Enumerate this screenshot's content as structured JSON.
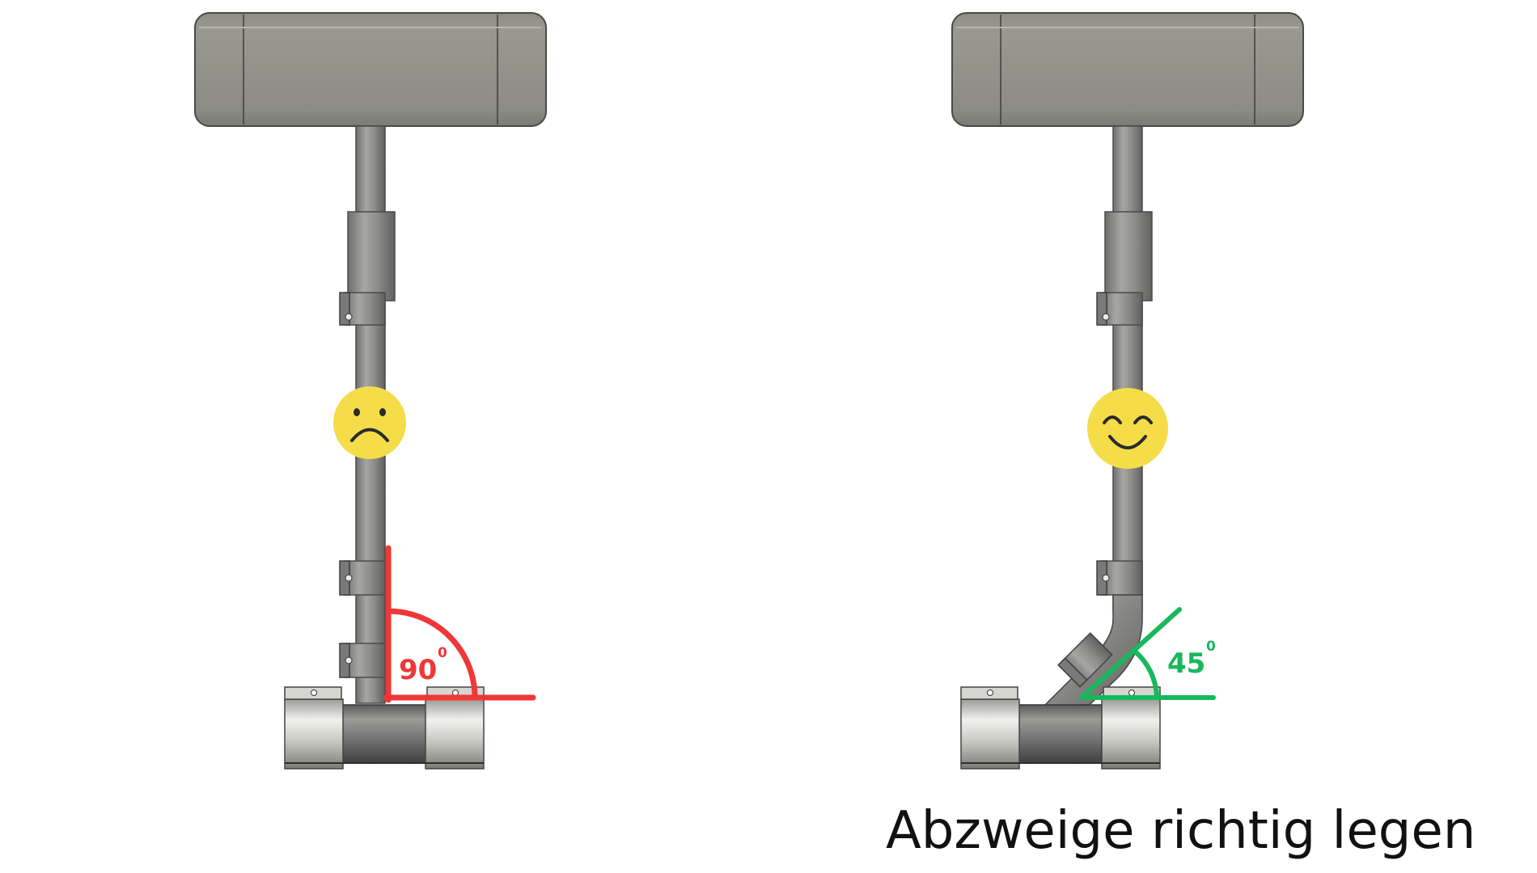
{
  "panels": [
    {
      "id": "wrong",
      "angle_value": "90",
      "angle_unit": "0",
      "angle_color": "#f03737",
      "emoji": "sad-face",
      "verdict": "wrong"
    },
    {
      "id": "correct",
      "angle_value": "45",
      "angle_unit": "0",
      "angle_color": "#17b85c",
      "emoji": "smiling-face",
      "verdict": "correct"
    }
  ],
  "caption": "Abzweige richtig legen",
  "colors": {
    "background": "#ffffff",
    "housing": "#8e8e86",
    "pipe_dark": "#707070",
    "pipe_light": "#d9d9d4",
    "emoji_yellow": "#f5dd4a",
    "red": "#f03737",
    "green": "#17b85c"
  }
}
